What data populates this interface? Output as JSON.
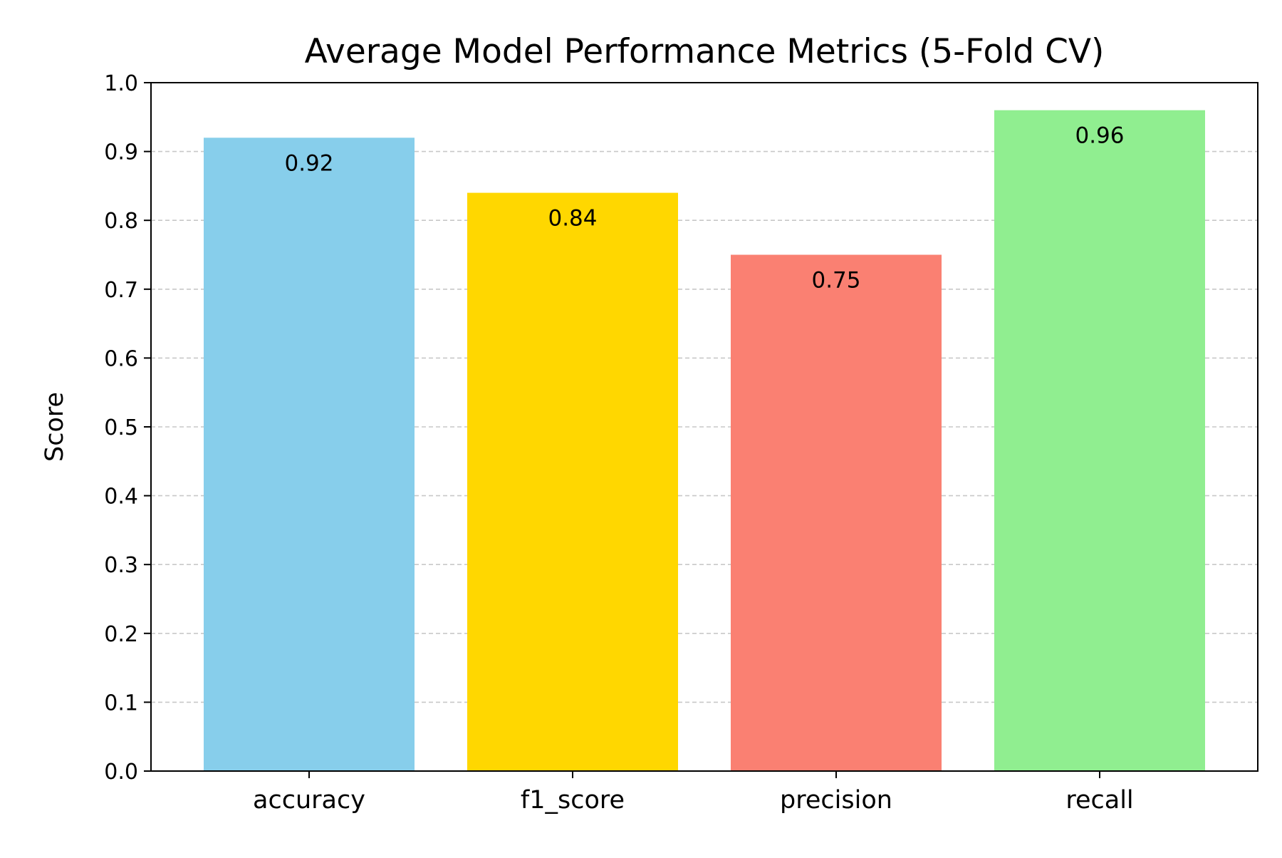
{
  "chart_data": {
    "type": "bar",
    "title": "Average Model Performance Metrics (5-Fold CV)",
    "xlabel": "",
    "ylabel": "Score",
    "categories": [
      "accuracy",
      "f1_score",
      "precision",
      "recall"
    ],
    "values": [
      0.92,
      0.84,
      0.75,
      0.96
    ],
    "value_labels": [
      "0.92",
      "0.84",
      "0.75",
      "0.96"
    ],
    "bar_colors": [
      "#87CEEB",
      "#FFD700",
      "#FA8072",
      "#90EE90"
    ],
    "ylim": [
      0,
      1.0
    ],
    "yticks": [
      "0.0",
      "0.1",
      "0.2",
      "0.3",
      "0.4",
      "0.5",
      "0.6",
      "0.7",
      "0.8",
      "0.9",
      "1.0"
    ],
    "grid": "y-axis dashed",
    "legend": "none"
  }
}
